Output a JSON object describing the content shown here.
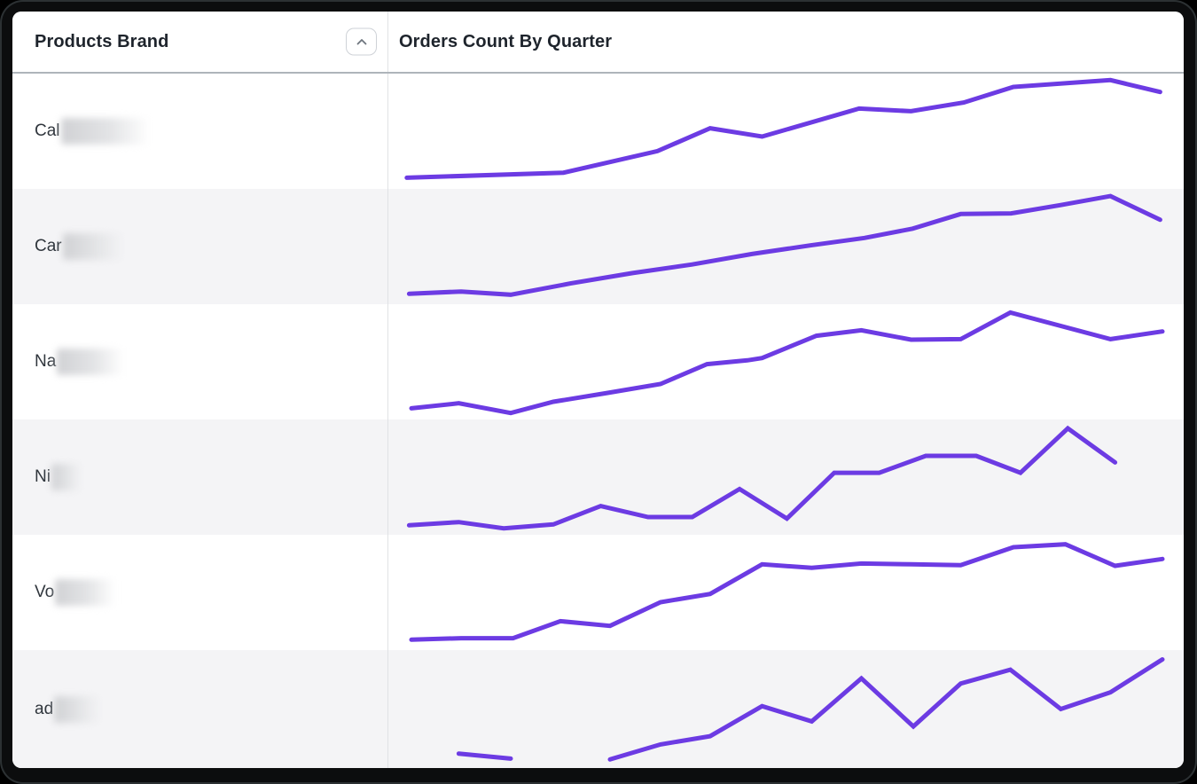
{
  "table": {
    "columns": [
      {
        "label": "Products Brand"
      },
      {
        "label": "Orders Count By Quarter"
      }
    ],
    "sort_button": {
      "icon": "chevron-up-icon",
      "state": "ascending"
    }
  },
  "rows": [
    {
      "brand_prefix": "Cal",
      "redacted": true,
      "redacted_style": "width:100px"
    },
    {
      "brand_prefix": "Car",
      "redacted": true,
      "redacted_style": "width:68px"
    },
    {
      "brand_prefix": "Na",
      "redacted": true,
      "redacted_style": "width:76px"
    },
    {
      "brand_prefix": "Ni",
      "redacted": true,
      "redacted_style": "width:34px"
    },
    {
      "brand_prefix": "Vo",
      "redacted": true,
      "redacted_style": "width:68px"
    },
    {
      "brand_prefix": "ad",
      "redacted": true,
      "redacted_style": "width:52px"
    }
  ],
  "chart_data": {
    "type": "line",
    "title": "Orders Count By Quarter",
    "x_unit": "quarter",
    "axes_hidden": true,
    "line_color": "#6C3BE3",
    "value_scale": "normalized 0-100 per sparkline (no axis labels visible)",
    "series": [
      {
        "name": "Cal (redacted)",
        "segments": [
          [
            [
              1,
              9.7
            ],
            [
              21.2,
              14.1
            ],
            [
              33.3,
              32.8
            ],
            [
              40.1,
              52.6
            ],
            [
              46.8,
              45.4
            ],
            [
              59.3,
              69.7
            ],
            [
              66,
              67.4
            ],
            [
              72.8,
              74.9
            ],
            [
              79.2,
              88.5
            ],
            [
              91.7,
              94.4
            ],
            [
              98.1,
              84.1
            ]
          ]
        ]
      },
      {
        "name": "Car (redacted)",
        "segments": [
          [
            [
              1.3,
              9
            ],
            [
              8,
              11
            ],
            [
              14.4,
              8.2
            ],
            [
              22.1,
              18
            ],
            [
              30.1,
              27
            ],
            [
              37.8,
              34.5
            ],
            [
              45.5,
              43.5
            ],
            [
              53,
              51
            ],
            [
              60,
              57.5
            ],
            [
              66.2,
              65.5
            ],
            [
              72.4,
              78.2
            ],
            [
              78.9,
              78.8
            ],
            [
              85.3,
              86
            ],
            [
              91.7,
              93.8
            ],
            [
              98.1,
              73.2
            ]
          ]
        ]
      },
      {
        "name": "Na (redacted)",
        "segments": [
          [
            [
              1.6,
              9.7
            ],
            [
              7.7,
              14.1
            ],
            [
              14.4,
              5.6
            ],
            [
              19.9,
              15.4
            ],
            [
              26.9,
              23.1
            ],
            [
              33.7,
              30.8
            ],
            [
              39.7,
              48
            ],
            [
              44.9,
              51.3
            ],
            [
              46.8,
              53.3
            ],
            [
              53.8,
              72.6
            ],
            [
              59.6,
              77.4
            ],
            [
              66,
              69.2
            ],
            [
              72.4,
              69.7
            ],
            [
              78.8,
              92.8
            ],
            [
              91.7,
              69.7
            ],
            [
              98.4,
              76.4
            ]
          ]
        ]
      },
      {
        "name": "Ni (redacted)",
        "segments": [
          [
            [
              1.3,
              8.2
            ],
            [
              7.7,
              11
            ],
            [
              13.5,
              5.6
            ],
            [
              19.9,
              9
            ],
            [
              26,
              24.9
            ],
            [
              32.1,
              15.4
            ],
            [
              37.8,
              15.4
            ],
            [
              43.9,
              39.7
            ],
            [
              50,
              14.1
            ],
            [
              56.1,
              53.8
            ],
            [
              61.9,
              53.8
            ],
            [
              67.9,
              68.5
            ],
            [
              74.4,
              68.5
            ],
            [
              80.1,
              53.8
            ],
            [
              86.2,
              92.3
            ],
            [
              92.3,
              62.8
            ]
          ]
        ]
      },
      {
        "name": "Vo (redacted)",
        "segments": [
          [
            [
              1.6,
              9
            ],
            [
              8,
              10.3
            ],
            [
              14.7,
              10.3
            ],
            [
              20.8,
              25.1
            ],
            [
              27.2,
              21
            ],
            [
              33.7,
              41.5
            ],
            [
              40.1,
              48.7
            ],
            [
              46.8,
              74.4
            ],
            [
              53.2,
              71.3
            ],
            [
              59.6,
              75.1
            ],
            [
              66,
              74.4
            ],
            [
              72.4,
              73.6
            ],
            [
              79.2,
              89.2
            ],
            [
              85.9,
              91.8
            ],
            [
              92.3,
              73.1
            ],
            [
              98.4,
              79
            ]
          ]
        ]
      },
      {
        "name": "ad (redacted)",
        "segments": [
          [
            [
              7.7,
              12.2
            ],
            [
              14.4,
              8
            ]
          ],
          [
            [
              27.2,
              7.3
            ],
            [
              33.7,
              20
            ],
            [
              40.1,
              27
            ],
            [
              46.8,
              52.5
            ],
            [
              53.2,
              39.5
            ],
            [
              59.6,
              76
            ],
            [
              66.3,
              35.2
            ],
            [
              72.4,
              71.6
            ],
            [
              78.8,
              83.4
            ],
            [
              85.3,
              50
            ],
            [
              91.7,
              64.2
            ],
            [
              98.4,
              92.1
            ]
          ]
        ]
      }
    ]
  }
}
